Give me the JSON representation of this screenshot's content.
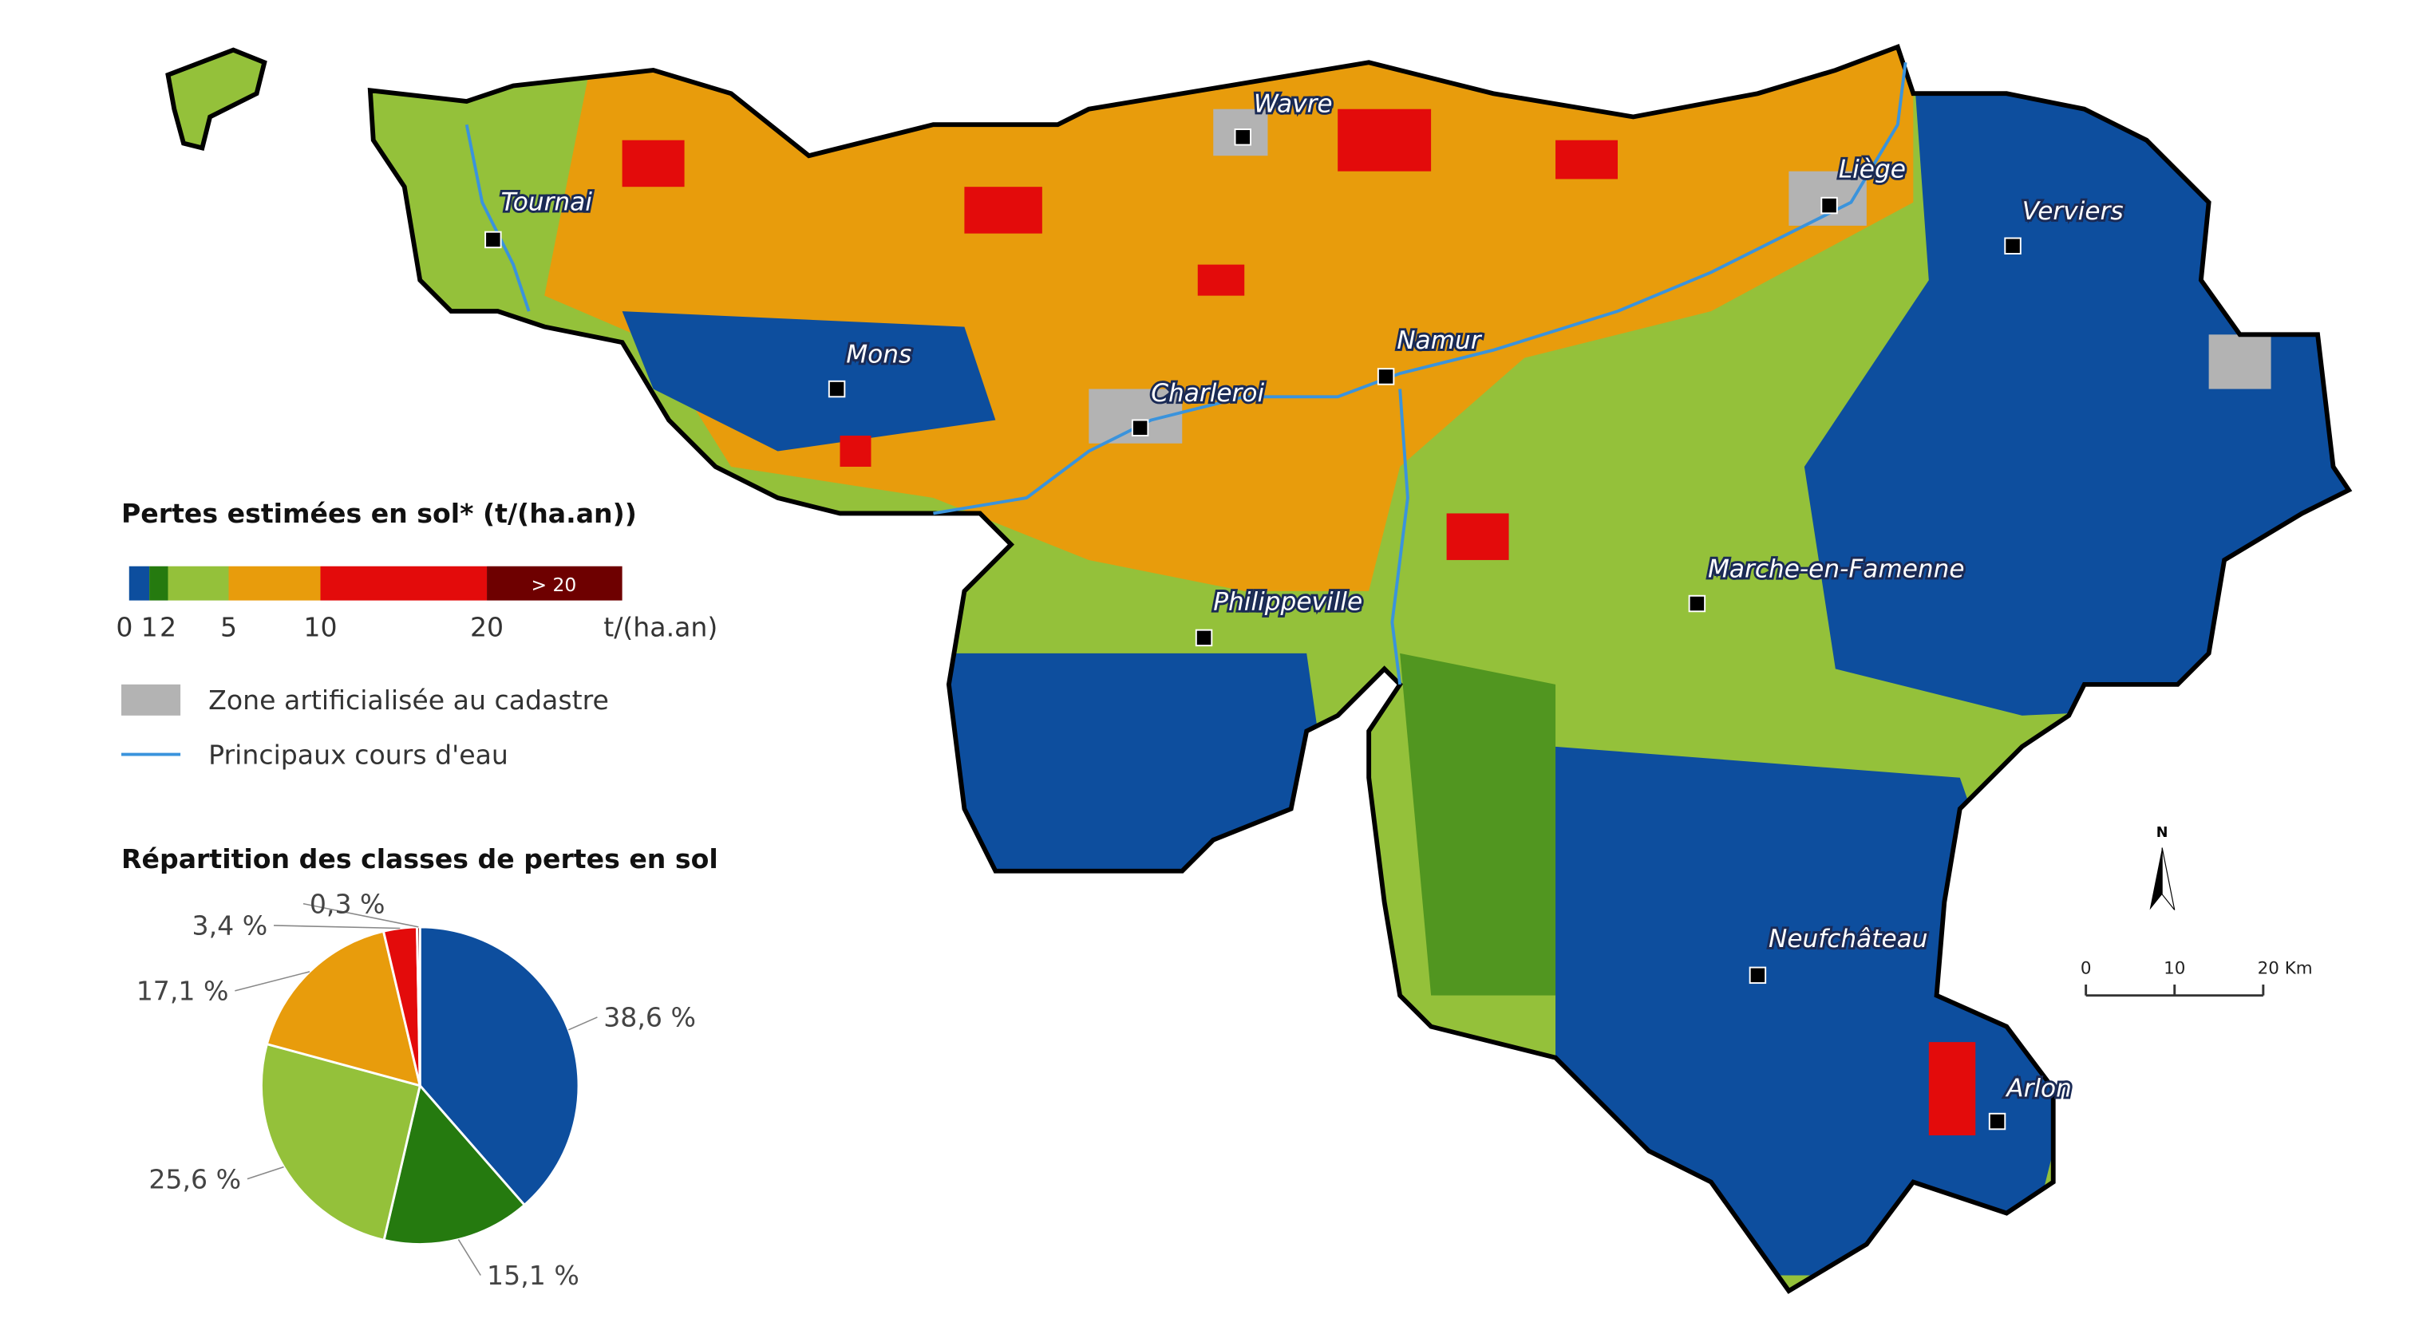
{
  "legend": {
    "title": "Pertes estimées en sol* (t/(ha.an))",
    "scale": {
      "ticks": [
        0,
        1,
        2,
        5,
        10,
        20
      ],
      "last_label": "> 20",
      "unit": "t/(ha.an)",
      "colors": [
        "#0d4e9e",
        "#257a0f",
        "#94c13a",
        "#e89c0c",
        "#e30b0b",
        "#6e0000"
      ]
    },
    "items": [
      {
        "label": "Zone artificialisée au cadastre",
        "color": "#b3b3b3"
      },
      {
        "label": "Principaux cours d'eau",
        "color": "#3a93dc"
      }
    ]
  },
  "cities": [
    "Wavre",
    "Tournai",
    "Liège",
    "Verviers",
    "Namur",
    "Mons",
    "Charleroi",
    "Marche-en-Famenne",
    "Philippeville",
    "Neufchâteau",
    "Arlon"
  ],
  "north": "N",
  "scale_bar": {
    "ticks": [
      0,
      10,
      {
        "value": 20,
        "label": "20 Km"
      }
    ]
  },
  "chart_data": {
    "type": "pie",
    "title": "Répartition des classes de pertes en sol",
    "values": [
      38.6,
      15.1,
      25.6,
      17.1,
      3.4,
      0.3
    ],
    "value_labels": [
      "38,6 %",
      "15,1 %",
      "25,6 %",
      "17,1 %",
      "3,4 %",
      "0,3 %"
    ],
    "colors": [
      "#0d4e9e",
      "#257a0f",
      "#94c13a",
      "#e89c0c",
      "#e30b0b",
      "#6e0000"
    ]
  }
}
